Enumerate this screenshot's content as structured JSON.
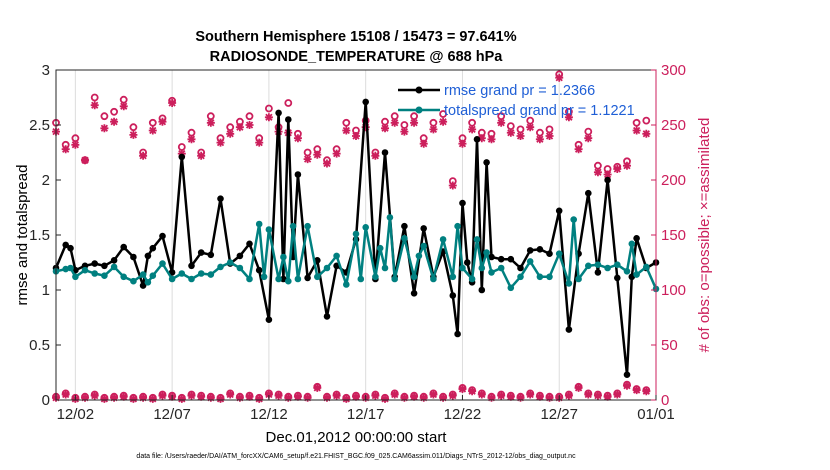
{
  "chart_data": {
    "type": "line",
    "title_line1": "Southern Hemisphere 15108 / 15473 = 97.641%",
    "title_line2": "RADIOSONDE_TEMPERATURE @ 688 hPa",
    "xlabel": "Dec.01,2012 00:00:00 start",
    "ylabel_left": "rmse and totalspread",
    "ylabel_right": "# of obs: o=possible; ×=assimilated",
    "xlim": [
      0.5,
      31.5
    ],
    "ylim_left": [
      0,
      3
    ],
    "ylim_right": [
      0,
      300
    ],
    "x_ticks": [
      {
        "x": 1.5,
        "label": "12/02"
      },
      {
        "x": 6.5,
        "label": "12/07"
      },
      {
        "x": 11.5,
        "label": "12/12"
      },
      {
        "x": 16.5,
        "label": "12/17"
      },
      {
        "x": 21.5,
        "label": "12/22"
      },
      {
        "x": 26.5,
        "label": "12/27"
      },
      {
        "x": 31.5,
        "label": "01/01"
      }
    ],
    "y_ticks_left": [
      "0",
      "0.5",
      "1",
      "1.5",
      "2",
      "2.5",
      "3"
    ],
    "y_ticks_right": [
      "0",
      "50",
      "100",
      "150",
      "200",
      "250",
      "300"
    ],
    "colors": {
      "rmse": "#000000",
      "spread": "#008080",
      "obs": "#cc1f5c",
      "legend_text": "#1f5fd6"
    },
    "legend": {
      "rmse": "rmse grand pr = 1.2366",
      "spread": "totalspread grand pr = 1.1221"
    },
    "series": [
      {
        "name": "rmse",
        "x": [
          0.5,
          1.0,
          1.25,
          1.5,
          2.0,
          2.5,
          3.0,
          3.5,
          4.0,
          4.5,
          5.0,
          5.25,
          5.5,
          6.0,
          6.5,
          7.0,
          7.5,
          8.0,
          8.5,
          9.0,
          9.5,
          10.0,
          10.5,
          11.0,
          11.5,
          12.0,
          12.25,
          12.5,
          12.75,
          13.0,
          13.5,
          14.0,
          14.5,
          15.0,
          15.5,
          16.0,
          16.5,
          17.0,
          17.5,
          18.0,
          18.5,
          19.0,
          19.5,
          20.0,
          20.5,
          21.0,
          21.25,
          21.5,
          21.75,
          22.0,
          22.25,
          22.5,
          22.75,
          23.0,
          23.5,
          24.0,
          24.5,
          25.0,
          25.5,
          26.0,
          26.5,
          27.0,
          27.5,
          28.0,
          28.5,
          29.0,
          29.5,
          30.0,
          30.25,
          30.5,
          31.0,
          31.5
        ],
        "values": [
          1.2,
          1.41,
          1.38,
          1.18,
          1.22,
          1.24,
          1.22,
          1.27,
          1.39,
          1.3,
          1.04,
          1.31,
          1.38,
          1.49,
          1.16,
          2.21,
          1.22,
          1.34,
          1.32,
          1.83,
          1.24,
          1.31,
          1.42,
          1.18,
          0.73,
          2.61,
          1.1,
          2.55,
          1.3,
          2.05,
          1.11,
          1.27,
          0.76,
          1.22,
          1.16,
          1.46,
          2.71,
          1.1,
          2.25,
          1.12,
          1.58,
          0.97,
          1.56,
          1.12,
          1.35,
          0.95,
          0.6,
          1.79,
          1.25,
          1.07,
          2.37,
          1.0,
          2.16,
          1.3,
          1.28,
          1.28,
          1.2,
          1.36,
          1.37,
          1.33,
          1.72,
          0.64,
          1.33,
          1.88,
          1.16,
          2.0,
          1.11,
          0.23,
          1.12,
          1.47,
          1.2,
          1.25
        ]
      },
      {
        "name": "totalspread",
        "x": [
          0.5,
          1.0,
          1.25,
          1.5,
          2.0,
          2.5,
          3.0,
          3.5,
          4.0,
          4.5,
          5.0,
          5.25,
          5.5,
          6.0,
          6.5,
          7.0,
          7.5,
          8.0,
          8.5,
          9.0,
          9.5,
          10.0,
          10.5,
          11.0,
          11.25,
          11.5,
          12.0,
          12.25,
          12.5,
          12.75,
          13.0,
          13.5,
          14.0,
          14.5,
          15.0,
          15.5,
          16.0,
          16.25,
          16.5,
          17.0,
          17.25,
          17.5,
          17.75,
          18.0,
          18.5,
          19.0,
          19.25,
          19.5,
          20.0,
          20.5,
          21.0,
          21.25,
          21.5,
          22.0,
          22.25,
          22.5,
          22.75,
          23.0,
          23.5,
          24.0,
          24.5,
          25.0,
          25.5,
          26.0,
          26.5,
          27.0,
          27.25,
          27.5,
          28.0,
          28.5,
          29.0,
          29.5,
          30.0,
          30.25,
          30.5,
          31.0,
          31.5
        ],
        "values": [
          1.17,
          1.19,
          1.2,
          1.12,
          1.18,
          1.15,
          1.13,
          1.21,
          1.12,
          1.08,
          1.14,
          1.07,
          1.13,
          1.24,
          1.1,
          1.15,
          1.1,
          1.15,
          1.14,
          1.21,
          1.25,
          1.2,
          1.1,
          1.6,
          1.12,
          1.55,
          1.1,
          1.3,
          1.08,
          1.58,
          1.1,
          1.58,
          1.12,
          1.2,
          1.31,
          1.05,
          1.51,
          1.1,
          1.57,
          1.12,
          1.38,
          1.2,
          1.66,
          1.1,
          1.47,
          1.12,
          1.31,
          1.4,
          1.1,
          1.46,
          1.12,
          1.58,
          1.2,
          1.1,
          1.46,
          1.2,
          1.34,
          1.16,
          1.2,
          1.02,
          1.12,
          1.26,
          1.12,
          1.12,
          1.33,
          1.06,
          1.64,
          1.1,
          1.22,
          1.23,
          1.2,
          1.23,
          1.17,
          1.42,
          1.14,
          1.21,
          1.01
        ]
      },
      {
        "name": "obs_possible",
        "x": [
          0.5,
          1.0,
          1.5,
          2.0,
          2.5,
          3.0,
          3.5,
          4.0,
          4.5,
          5.0,
          5.5,
          6.0,
          6.5,
          7.0,
          7.5,
          8.0,
          8.5,
          9.0,
          9.5,
          10.0,
          10.5,
          11.0,
          11.5,
          12.0,
          12.5,
          13.0,
          13.5,
          14.0,
          14.5,
          15.0,
          15.5,
          16.0,
          16.5,
          17.0,
          17.5,
          18.0,
          18.5,
          19.0,
          19.5,
          20.0,
          20.5,
          21.0,
          21.5,
          22.0,
          22.5,
          23.0,
          23.5,
          24.0,
          24.5,
          25.0,
          25.5,
          26.0,
          26.5,
          27.0,
          27.5,
          28.0,
          28.5,
          29.0,
          29.5,
          30.0,
          30.5,
          31.0
        ],
        "values": [
          252,
          232,
          238,
          218,
          275,
          258,
          262,
          273,
          248,
          225,
          252,
          256,
          272,
          230,
          243,
          225,
          258,
          238,
          248,
          253,
          258,
          238,
          265,
          248,
          270,
          242,
          225,
          228,
          218,
          228,
          252,
          245,
          254,
          225,
          253,
          258,
          250,
          258,
          238,
          252,
          260,
          199,
          238,
          252,
          243,
          242,
          258,
          249,
          246,
          254,
          243,
          246,
          296,
          262,
          232,
          244,
          213,
          210,
          212,
          217,
          252,
          254
        ]
      },
      {
        "name": "obs_assimilated",
        "x": [
          0.5,
          1.0,
          1.5,
          2.0,
          2.5,
          3.0,
          3.5,
          4.0,
          4.5,
          5.0,
          5.5,
          6.0,
          6.5,
          7.0,
          7.5,
          8.0,
          8.5,
          9.0,
          9.5,
          10.0,
          10.5,
          11.0,
          11.5,
          12.0,
          12.5,
          13.0,
          13.5,
          14.0,
          14.5,
          15.0,
          15.5,
          16.0,
          16.5,
          17.0,
          17.5,
          18.0,
          18.5,
          19.0,
          19.5,
          20.0,
          20.5,
          21.0,
          21.5,
          22.0,
          22.5,
          23.0,
          23.5,
          24.0,
          24.5,
          25.0,
          25.5,
          26.0,
          26.5,
          27.0,
          27.5,
          28.0,
          28.5,
          29.0,
          29.5,
          30.0,
          30.5,
          31.0
        ],
        "values": [
          244,
          228,
          232,
          218,
          268,
          247,
          253,
          267,
          241,
          222,
          245,
          253,
          270,
          224,
          237,
          222,
          252,
          234,
          242,
          248,
          250,
          234,
          257,
          244,
          243,
          238,
          219,
          223,
          215,
          224,
          245,
          240,
          248,
          222,
          247,
          252,
          244,
          252,
          233,
          246,
          253,
          195,
          233,
          246,
          238,
          237,
          252,
          243,
          240,
          248,
          237,
          240,
          293,
          257,
          228,
          238,
          207,
          205,
          210,
          213,
          245,
          242
        ]
      },
      {
        "name": "obs_bottom_possible",
        "x": [
          0.5,
          1.0,
          1.5,
          2.0,
          2.5,
          3.0,
          3.5,
          4.0,
          4.5,
          5.0,
          5.5,
          6.0,
          6.5,
          7.0,
          7.5,
          8.0,
          8.5,
          9.0,
          9.5,
          10.0,
          10.5,
          11.0,
          11.5,
          12.0,
          12.5,
          13.0,
          13.5,
          14.0,
          14.5,
          15.0,
          15.5,
          16.0,
          16.5,
          17.0,
          17.5,
          18.0,
          18.5,
          19.0,
          19.5,
          20.0,
          20.5,
          21.0,
          21.5,
          22.0,
          22.5,
          23.0,
          23.5,
          24.0,
          24.5,
          25.0,
          25.5,
          26.0,
          26.5,
          27.0,
          27.5,
          28.0,
          28.5,
          29.0,
          29.5,
          30.0,
          30.5,
          31.0
        ],
        "values": [
          3,
          6,
          2,
          3,
          5,
          2,
          3,
          4,
          2,
          3,
          2,
          5,
          4,
          2,
          5,
          4,
          3,
          2,
          6,
          3,
          4,
          2,
          6,
          5,
          3,
          4,
          3,
          12,
          3,
          5,
          2,
          4,
          3,
          5,
          2,
          6,
          3,
          4,
          3,
          6,
          3,
          5,
          11,
          9,
          6,
          3,
          5,
          4,
          3,
          6,
          4,
          3,
          3,
          5,
          12,
          6,
          5,
          4,
          6,
          14,
          10,
          9
        ]
      },
      {
        "name": "obs_bottom_assimilated",
        "x": [
          0.5,
          1.0,
          1.5,
          2.0,
          2.5,
          3.0,
          3.5,
          4.0,
          4.5,
          5.0,
          5.5,
          6.0,
          6.5,
          7.0,
          7.5,
          8.0,
          8.5,
          9.0,
          9.5,
          10.0,
          10.5,
          11.0,
          11.5,
          12.0,
          12.5,
          13.0,
          13.5,
          14.0,
          14.5,
          15.0,
          15.5,
          16.0,
          16.5,
          17.0,
          17.5,
          18.0,
          18.5,
          19.0,
          19.5,
          20.0,
          20.5,
          21.0,
          21.5,
          22.0,
          22.5,
          23.0,
          23.5,
          24.0,
          24.5,
          25.0,
          25.5,
          26.0,
          26.5,
          27.0,
          27.5,
          28.0,
          28.5,
          29.0,
          29.5,
          30.0,
          30.5,
          31.0
        ],
        "values": [
          2,
          5,
          1,
          2,
          4,
          1,
          2,
          3,
          1,
          2,
          1,
          4,
          3,
          1,
          4,
          3,
          2,
          1,
          5,
          2,
          3,
          1,
          5,
          4,
          2,
          3,
          2,
          11,
          2,
          4,
          1,
          3,
          2,
          4,
          1,
          5,
          2,
          3,
          2,
          5,
          2,
          4,
          10,
          8,
          5,
          2,
          4,
          3,
          2,
          5,
          3,
          2,
          2,
          4,
          11,
          5,
          4,
          3,
          5,
          13,
          9,
          8
        ]
      }
    ]
  },
  "footnote": "data file: /Users/raeder/DAI/ATM_forcXX/CAM6_setup/f.e21.FHIST_BGC.f09_025.CAM6assim.011/Diags_NTrS_2012-12/obs_diag_output.nc"
}
